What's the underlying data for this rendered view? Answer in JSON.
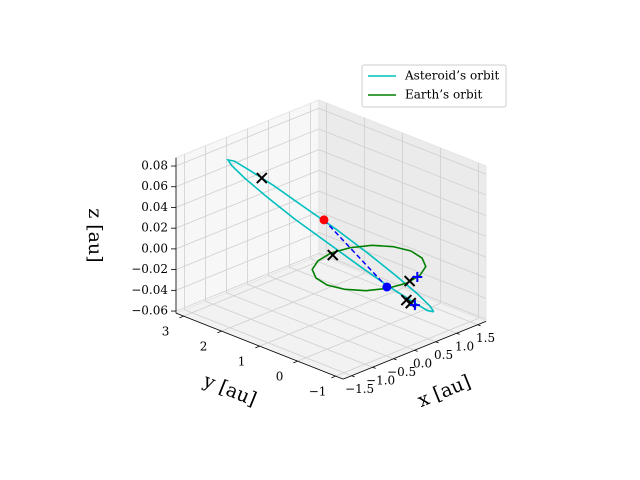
{
  "chart_data": {
    "type": "line3d",
    "xlabel": "x [au]",
    "ylabel": "y [au]",
    "zlabel": "z [au]",
    "xlim": [
      -1.7,
      1.7
    ],
    "ylim": [
      -1.2,
      3.2
    ],
    "zlim": [
      -0.062,
      0.088
    ],
    "xticks": [
      {
        "value": -1.5,
        "label": "−1.5"
      },
      {
        "value": -1.0,
        "label": "−1.0"
      },
      {
        "value": -0.5,
        "label": "−0.5"
      },
      {
        "value": 0.0,
        "label": "0.0"
      },
      0.5,
      {
        "value": 1.0,
        "label": "1.0"
      },
      1.5
    ],
    "yticks": [
      {
        "value": -1,
        "label": "−1"
      },
      0,
      1,
      2,
      3
    ],
    "zticks": [
      {
        "value": -0.06,
        "label": "−0.06"
      },
      {
        "value": -0.04,
        "label": "−0.04"
      },
      {
        "value": -0.02,
        "label": "−0.02"
      },
      {
        "value": 0.0,
        "label": "0.00"
      },
      0.02,
      0.04,
      0.06,
      0.08
    ],
    "grid": true,
    "legend": "upper right",
    "series": [
      {
        "name": "Asteroid’s orbit",
        "color": "#00bfbf",
        "x": [
          1.0,
          1.03,
          0.95,
          0.78,
          0.53,
          0.22,
          -0.11,
          -0.43,
          -0.72,
          -0.93,
          -1.06,
          -1.09,
          -1.01,
          -0.84,
          -0.59,
          -0.28,
          0.05,
          0.37,
          0.66,
          0.87,
          1.0
        ],
        "y": [
          -0.6,
          -0.47,
          -0.21,
          0.18,
          0.64,
          1.13,
          1.61,
          2.02,
          2.33,
          2.51,
          2.54,
          2.41,
          2.15,
          1.76,
          1.3,
          0.81,
          0.33,
          -0.08,
          -0.39,
          -0.57,
          -0.6
        ],
        "z": [
          -0.05,
          -0.047,
          -0.037,
          -0.022,
          -0.003,
          0.018,
          0.038,
          0.057,
          0.072,
          0.082,
          0.085,
          0.082,
          0.072,
          0.057,
          0.038,
          0.018,
          -0.003,
          -0.022,
          -0.037,
          -0.047,
          -0.05
        ]
      },
      {
        "name": "Earth’s orbit",
        "color": "#008000",
        "x": [
          1,
          0.92,
          0.71,
          0.38,
          0,
          -0.38,
          -0.71,
          -0.92,
          -1,
          -0.92,
          -0.71,
          -0.38,
          0,
          0.38,
          0.71,
          0.92,
          1
        ],
        "y": [
          0,
          0.38,
          0.71,
          0.92,
          1,
          0.92,
          0.71,
          0.38,
          0,
          -0.38,
          -0.71,
          -0.92,
          -1,
          -0.92,
          -0.71,
          -0.38,
          0
        ],
        "z": [
          0,
          0,
          0,
          0,
          0,
          0,
          0,
          0,
          0,
          0,
          0,
          0,
          0,
          0,
          0,
          0,
          0
        ]
      }
    ],
    "markers": [
      {
        "marker": "o",
        "color": "#ff0000",
        "x": [
          -0.33
        ],
        "y": [
          0.82
        ],
        "z": [
          0.04
        ]
      },
      {
        "marker": "o",
        "color": "#0000ff",
        "x": [
          0.57
        ],
        "y": [
          0.16
        ],
        "z": [
          -0.03
        ]
      },
      {
        "marker": "x",
        "color": "#000000",
        "x": [
          -1.05,
          -0.04,
          0.09,
          0.41,
          0.37
        ],
        "y": [
          1.66,
          0.91,
          -0.97,
          -0.53,
          -0.69
        ],
        "z": [
          0.08,
          0,
          0,
          -0.03,
          -0.03
        ]
      },
      {
        "marker": "+",
        "color": "#0000ff",
        "x": [
          0.3,
          0.36
        ],
        "y": [
          -0.94,
          -0.81
        ],
        "z": [
          0,
          -0.03
        ]
      }
    ]
  }
}
